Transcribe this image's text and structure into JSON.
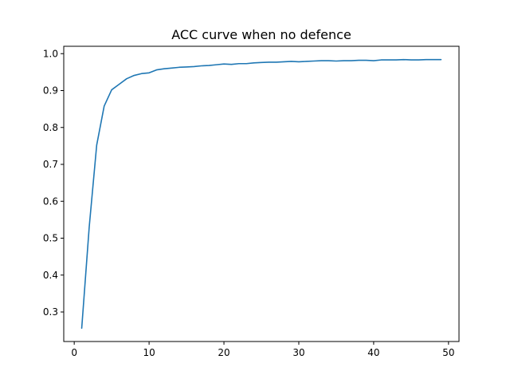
{
  "chart_data": {
    "type": "line",
    "title": "ACC curve when no defence",
    "xlabel": "",
    "ylabel": "",
    "xlim": [
      -1.4,
      51.4
    ],
    "ylim": [
      0.22,
      1.02
    ],
    "xticks": [
      0,
      10,
      20,
      30,
      40,
      50
    ],
    "yticks": [
      0.3,
      0.4,
      0.5,
      0.6,
      0.7,
      0.8,
      0.9,
      1.0
    ],
    "grid": false,
    "legend": "none",
    "series": [
      {
        "color": "#1f77b4",
        "x": [
          1,
          2,
          3,
          4,
          5,
          6,
          7,
          8,
          9,
          10,
          11,
          12,
          13,
          14,
          15,
          16,
          17,
          18,
          19,
          20,
          21,
          22,
          23,
          24,
          25,
          26,
          27,
          28,
          29,
          30,
          31,
          32,
          33,
          34,
          35,
          36,
          37,
          38,
          39,
          40,
          41,
          42,
          43,
          44,
          45,
          46,
          47,
          48,
          49
        ],
        "y": [
          0.256,
          0.53,
          0.752,
          0.858,
          0.902,
          0.917,
          0.932,
          0.941,
          0.946,
          0.948,
          0.956,
          0.959,
          0.961,
          0.963,
          0.964,
          0.965,
          0.967,
          0.968,
          0.97,
          0.972,
          0.971,
          0.973,
          0.973,
          0.975,
          0.976,
          0.977,
          0.977,
          0.978,
          0.979,
          0.978,
          0.979,
          0.98,
          0.981,
          0.981,
          0.98,
          0.981,
          0.981,
          0.982,
          0.982,
          0.981,
          0.983,
          0.983,
          0.983,
          0.984,
          0.983,
          0.983,
          0.984,
          0.984,
          0.984
        ]
      }
    ]
  }
}
